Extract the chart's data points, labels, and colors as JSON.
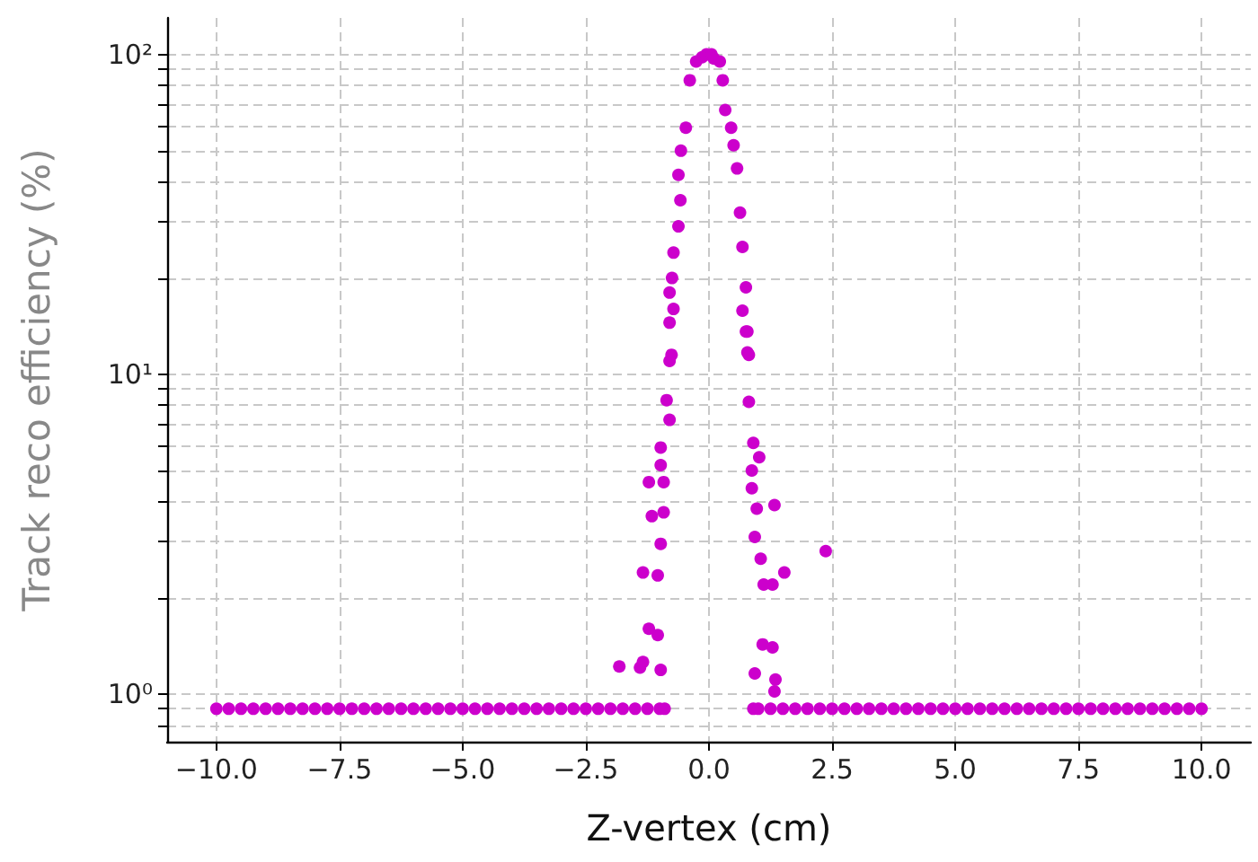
{
  "chart_data": {
    "type": "scatter",
    "xlabel": "Z-vertex (cm)",
    "ylabel": "Track reco efficiency (%)",
    "log": "y",
    "grid": true,
    "marker": "circle",
    "xlim": [
      -11,
      11
    ],
    "ylim": [
      0.71,
      130
    ],
    "xticks": [
      {
        "value": -10,
        "label": "−10.0"
      },
      {
        "value": -7.5,
        "label": "−7.5"
      },
      {
        "value": -5,
        "label": "−5.0"
      },
      {
        "value": -2.5,
        "label": "−2.5"
      },
      {
        "value": 0,
        "label": "0.0"
      },
      {
        "value": 2.5,
        "label": "2.5"
      },
      {
        "value": 5,
        "label": "5.0"
      },
      {
        "value": 7.5,
        "label": "7.5"
      },
      {
        "value": 10,
        "label": "10.0"
      }
    ],
    "yticks": [
      {
        "value": 0.8,
        "label": null
      },
      {
        "value": 0.9,
        "label": null
      },
      {
        "value": 1,
        "label": "10⁰"
      },
      {
        "value": 2,
        "label": null
      },
      {
        "value": 3,
        "label": null
      },
      {
        "value": 4,
        "label": null
      },
      {
        "value": 5,
        "label": null
      },
      {
        "value": 6,
        "label": null
      },
      {
        "value": 7,
        "label": null
      },
      {
        "value": 8,
        "label": null
      },
      {
        "value": 9,
        "label": null
      },
      {
        "value": 10,
        "label": "10¹"
      },
      {
        "value": 20,
        "label": null
      },
      {
        "value": 30,
        "label": null
      },
      {
        "value": 40,
        "label": null
      },
      {
        "value": 50,
        "label": null
      },
      {
        "value": 60,
        "label": null
      },
      {
        "value": 70,
        "label": null
      },
      {
        "value": 80,
        "label": null
      },
      {
        "value": 90,
        "label": null
      },
      {
        "value": 100,
        "label": "10²"
      }
    ],
    "series": [
      {
        "color": "#cc00cc",
        "x": [
          -10,
          -9.75,
          -9.5,
          -9.25,
          -9,
          -8.75,
          -8.5,
          -8.25,
          -8,
          -7.75,
          -7.5,
          -7.25,
          -7,
          -6.75,
          -6.5,
          -6.25,
          -6,
          -5.75,
          -5.5,
          -5.25,
          -5,
          -4.75,
          -4.5,
          -4.25,
          -4,
          -3.75,
          -3.5,
          -3.25,
          -3,
          -2.75,
          -2.5,
          -2.25,
          -2,
          -1.75,
          -1.5,
          -1.25,
          -1,
          -0.9,
          0.9,
          1,
          1.25,
          1.5,
          1.75,
          2,
          2.25,
          2.5,
          2.75,
          3,
          3.25,
          3.5,
          3.75,
          4,
          4.25,
          4.5,
          4.75,
          5,
          5.25,
          5.5,
          5.75,
          6,
          6.25,
          6.5,
          6.75,
          7,
          7.25,
          7.5,
          7.75,
          8,
          8.25,
          8.5,
          8.75,
          9,
          9.25,
          9.5,
          9.75,
          10,
          -0.14,
          -0.05,
          0.05,
          0.1,
          -0.26,
          -0.39,
          -0.47,
          -0.57,
          -0.62,
          -0.58,
          -0.62,
          -0.72,
          -0.75,
          -0.8,
          -0.72,
          -0.8,
          -0.76,
          0.22,
          0.28,
          0.33,
          0.45,
          0.5,
          0.57,
          0.63,
          0.68,
          0.75,
          0.68,
          0.78,
          0.78,
          -0.8,
          -0.86,
          -0.8,
          -0.98,
          -0.98,
          -1.22,
          -0.92,
          -1.16,
          -0.92,
          -0.98,
          -1.34,
          -1.04,
          -1.22,
          -1.04,
          -1.82,
          -1.34,
          -0.98,
          -1.4,
          0.75,
          0.81,
          0.81,
          0.9,
          1.02,
          0.87,
          0.87,
          0.97,
          1.33,
          0.93,
          1.05,
          1.53,
          1.11,
          1.29,
          2.37,
          1.09,
          1.29,
          0.93,
          1.35,
          1.33
        ],
        "values": [
          0.9,
          0.9,
          0.9,
          0.9,
          0.9,
          0.9,
          0.9,
          0.9,
          0.9,
          0.9,
          0.9,
          0.9,
          0.9,
          0.9,
          0.9,
          0.9,
          0.9,
          0.9,
          0.9,
          0.9,
          0.9,
          0.9,
          0.9,
          0.9,
          0.9,
          0.9,
          0.9,
          0.9,
          0.9,
          0.9,
          0.9,
          0.9,
          0.9,
          0.9,
          0.9,
          0.9,
          0.9,
          0.9,
          0.9,
          0.9,
          0.9,
          0.9,
          0.9,
          0.9,
          0.9,
          0.9,
          0.9,
          0.9,
          0.9,
          0.9,
          0.9,
          0.9,
          0.9,
          0.9,
          0.9,
          0.9,
          0.9,
          0.9,
          0.9,
          0.9,
          0.9,
          0.9,
          0.9,
          0.9,
          0.9,
          0.9,
          0.9,
          0.9,
          0.9,
          0.9,
          0.9,
          0.9,
          0.9,
          0.9,
          0.9,
          0.9,
          98,
          100,
          100,
          97,
          95,
          83,
          59,
          50,
          42,
          35,
          29,
          24,
          20,
          18,
          16,
          14.5,
          11.5,
          95,
          83,
          67,
          59,
          52,
          44,
          32,
          25,
          18.7,
          15.8,
          13.6,
          11.7,
          11,
          8.3,
          7.2,
          5.9,
          5.2,
          4.6,
          4.6,
          3.6,
          3.7,
          2.95,
          2.4,
          2.35,
          1.6,
          1.53,
          1.22,
          1.26,
          1.19,
          1.21,
          13.6,
          11.5,
          8.2,
          6.1,
          5.5,
          5,
          4.4,
          3.8,
          3.9,
          3.1,
          2.65,
          2.4,
          2.2,
          2.2,
          2.8,
          1.43,
          1.4,
          1.16,
          1.11,
          1.02
        ]
      }
    ]
  }
}
